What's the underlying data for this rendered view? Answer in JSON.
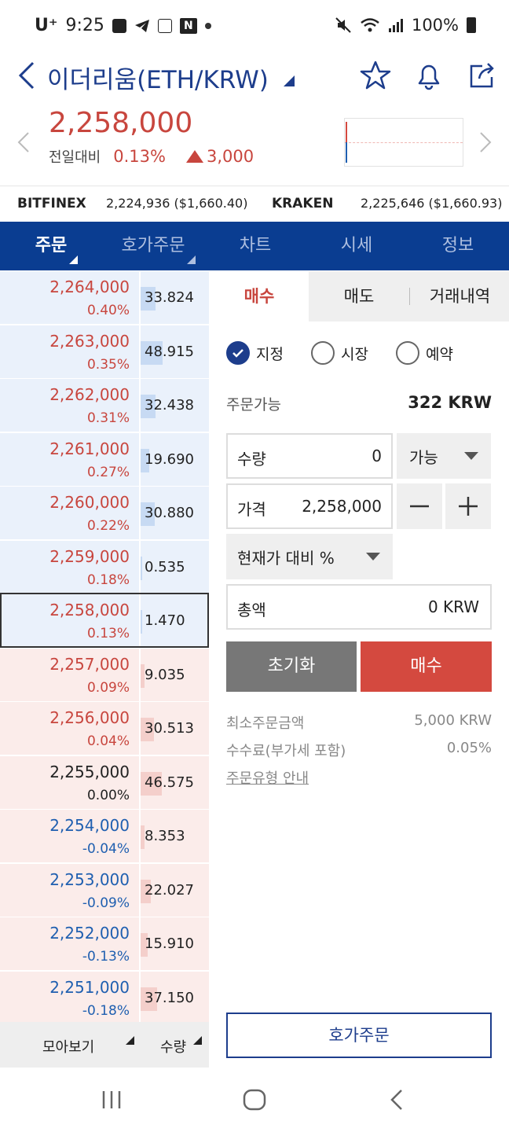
{
  "status_bar": {
    "carrier": "U⁺",
    "time": "9:25",
    "battery": "100%"
  },
  "header": {
    "title": "이더리움(ETH/KRW)"
  },
  "ticker": {
    "price": "2,258,000",
    "change_label": "전일대비",
    "change_pct": "0.13%",
    "change_amount": "3,000"
  },
  "exchanges": [
    {
      "name": "BITFINEX",
      "value": "2,224,936 ($1,660.40)"
    },
    {
      "name": "KRAKEN",
      "value": "2,225,646 ($1,660.93)"
    }
  ],
  "nav_tabs": [
    {
      "label": "주문",
      "active": true
    },
    {
      "label": "호가주문",
      "active": false
    },
    {
      "label": "차트",
      "active": false
    },
    {
      "label": "시세",
      "active": false
    },
    {
      "label": "정보",
      "active": false
    }
  ],
  "order_book": {
    "asks": [
      {
        "price": "2,264,000",
        "pct": "0.40%",
        "qty": "33.824",
        "qty_num": 33.824,
        "color": "red"
      },
      {
        "price": "2,263,000",
        "pct": "0.35%",
        "qty": "48.915",
        "qty_num": 48.915,
        "color": "red"
      },
      {
        "price": "2,262,000",
        "pct": "0.31%",
        "qty": "32.438",
        "qty_num": 32.438,
        "color": "red"
      },
      {
        "price": "2,261,000",
        "pct": "0.27%",
        "qty": "19.690",
        "qty_num": 19.69,
        "color": "red"
      },
      {
        "price": "2,260,000",
        "pct": "0.22%",
        "qty": "30.880",
        "qty_num": 30.88,
        "color": "red"
      },
      {
        "price": "2,259,000",
        "pct": "0.18%",
        "qty": "0.535",
        "qty_num": 0.535,
        "color": "red"
      },
      {
        "price": "2,258,000",
        "pct": "0.13%",
        "qty": "1.470",
        "qty_num": 1.47,
        "color": "red"
      }
    ],
    "bids": [
      {
        "price": "2,257,000",
        "pct": "0.09%",
        "qty": "9.035",
        "qty_num": 9.035,
        "color": "red"
      },
      {
        "price": "2,256,000",
        "pct": "0.04%",
        "qty": "30.513",
        "qty_num": 30.513,
        "color": "red"
      },
      {
        "price": "2,255,000",
        "pct": "0.00%",
        "qty": "46.575",
        "qty_num": 46.575,
        "color": "black"
      },
      {
        "price": "2,254,000",
        "pct": "-0.04%",
        "qty": "8.353",
        "qty_num": 8.353,
        "color": "blue"
      },
      {
        "price": "2,253,000",
        "pct": "-0.09%",
        "qty": "22.027",
        "qty_num": 22.027,
        "color": "blue"
      },
      {
        "price": "2,252,000",
        "pct": "-0.13%",
        "qty": "15.910",
        "qty_num": 15.91,
        "color": "blue"
      },
      {
        "price": "2,251,000",
        "pct": "-0.18%",
        "qty": "37.150",
        "qty_num": 37.15,
        "color": "blue"
      }
    ],
    "footer": {
      "view_label": "모아보기",
      "qty_label": "수량"
    }
  },
  "order_panel": {
    "tabs": [
      {
        "label": "매수",
        "active": true
      },
      {
        "label": "매도",
        "active": false
      },
      {
        "label": "거래내역",
        "active": false
      }
    ],
    "order_types": [
      {
        "label": "지정",
        "selected": true
      },
      {
        "label": "시장",
        "selected": false
      },
      {
        "label": "예약",
        "selected": false
      }
    ],
    "available_label": "주문가능",
    "available_value": "322 KRW",
    "qty_label": "수량",
    "qty_value": "0",
    "qty_dropdown": "가능",
    "price_label": "가격",
    "price_value": "2,258,000",
    "minus": "−",
    "plus": "+",
    "pct_dropdown": "현재가 대비 %",
    "total_label": "총액",
    "total_value": "0 KRW",
    "reset_label": "초기화",
    "buy_label": "매수",
    "min_order_label": "최소주문금액",
    "min_order_value": "5,000 KRW",
    "fee_label": "수수료(부가세 포함)",
    "fee_value": "0.05%",
    "guide_link": "주문유형 안내",
    "hoga_button": "호가주문"
  },
  "colors": {
    "brand_navy": "#0a3d91",
    "up_red": "#c8463e",
    "down_blue": "#1f5fb0"
  }
}
